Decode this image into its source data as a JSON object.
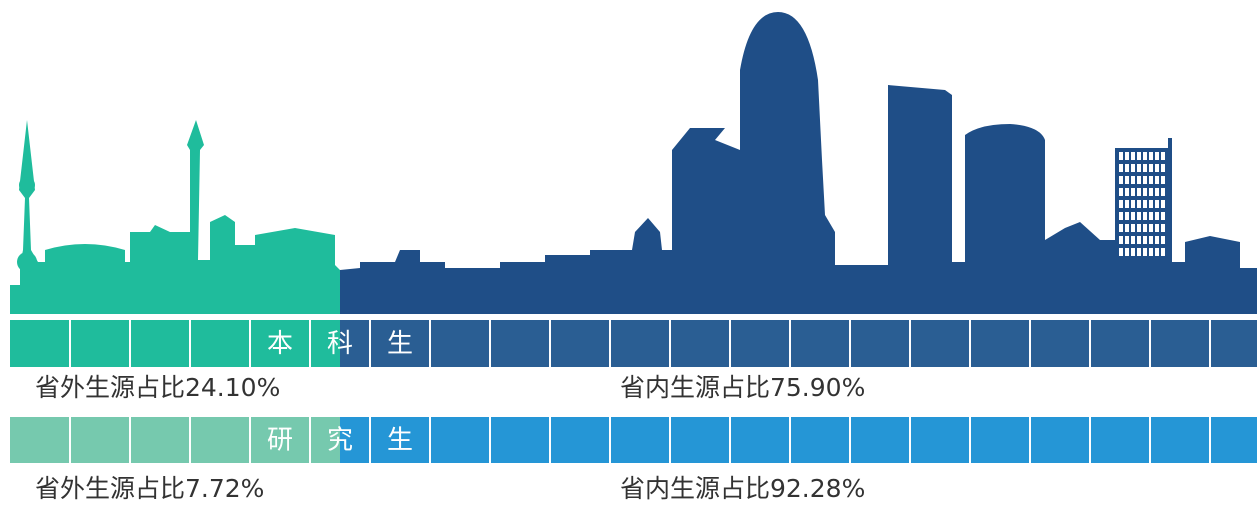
{
  "rows": [
    {
      "title": [
        "本",
        "科",
        "生"
      ],
      "outside": "省外生源占比24.10%",
      "inside": "省内生源占比75.90%"
    },
    {
      "title": [
        "研",
        "究",
        "生"
      ],
      "outside": "省外生源占比7.72%",
      "inside": "省内生源占比92.28%"
    }
  ]
}
